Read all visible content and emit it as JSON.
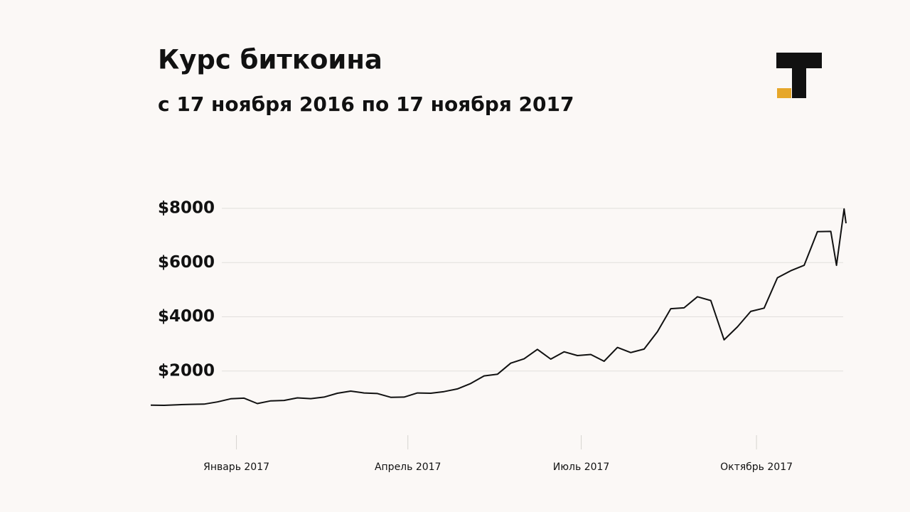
{
  "chart_data": {
    "type": "line",
    "title": "Курс биткоина",
    "subtitle": "с 17 ноября 2016 по 17 ноября 2017",
    "x": [
      "2016-11-17",
      "2016-11-24",
      "2016-12-01",
      "2016-12-08",
      "2016-12-15",
      "2016-12-22",
      "2016-12-29",
      "2017-01-05",
      "2017-01-12",
      "2017-01-19",
      "2017-01-26",
      "2017-02-02",
      "2017-02-09",
      "2017-02-16",
      "2017-02-23",
      "2017-03-02",
      "2017-03-09",
      "2017-03-16",
      "2017-03-23",
      "2017-03-30",
      "2017-04-06",
      "2017-04-13",
      "2017-04-20",
      "2017-04-27",
      "2017-05-04",
      "2017-05-11",
      "2017-05-18",
      "2017-05-25",
      "2017-06-01",
      "2017-06-08",
      "2017-06-15",
      "2017-06-22",
      "2017-06-29",
      "2017-07-06",
      "2017-07-13",
      "2017-07-20",
      "2017-07-27",
      "2017-08-03",
      "2017-08-10",
      "2017-08-17",
      "2017-08-24",
      "2017-08-31",
      "2017-09-07",
      "2017-09-14",
      "2017-09-21",
      "2017-09-28",
      "2017-10-05",
      "2017-10-12",
      "2017-10-19",
      "2017-10-26",
      "2017-11-02",
      "2017-11-09",
      "2017-11-12",
      "2017-11-16",
      "2017-11-17"
    ],
    "values": [
      740,
      735,
      755,
      770,
      780,
      860,
      975,
      1000,
      800,
      900,
      915,
      1010,
      980,
      1040,
      1180,
      1260,
      1190,
      1170,
      1030,
      1040,
      1190,
      1180,
      1240,
      1340,
      1540,
      1820,
      1880,
      2290,
      2450,
      2800,
      2440,
      2710,
      2570,
      2610,
      2360,
      2870,
      2680,
      2810,
      3450,
      4300,
      4330,
      4740,
      4600,
      3150,
      3630,
      4200,
      4320,
      5440,
      5700,
      5900,
      7140,
      7150,
      5900,
      7980,
      7450
    ],
    "color": "#111111",
    "xlim": [
      "2016-11-17",
      "2017-11-17"
    ],
    "xticks": [
      {
        "value": "2017-01-01",
        "label": "Январь 2017"
      },
      {
        "value": "2017-04-01",
        "label": "Апрель 2017"
      },
      {
        "value": "2017-07-01",
        "label": "Июль 2017"
      },
      {
        "value": "2017-10-01",
        "label": "Октябрь 2017"
      }
    ],
    "ylim": [
      0,
      8000
    ],
    "yticks": [
      {
        "value": 2000,
        "label": "$2000"
      },
      {
        "value": 4000,
        "label": "$4000"
      },
      {
        "value": 6000,
        "label": "$6000"
      },
      {
        "value": 8000,
        "label": "$8000"
      }
    ],
    "grid": true
  }
}
